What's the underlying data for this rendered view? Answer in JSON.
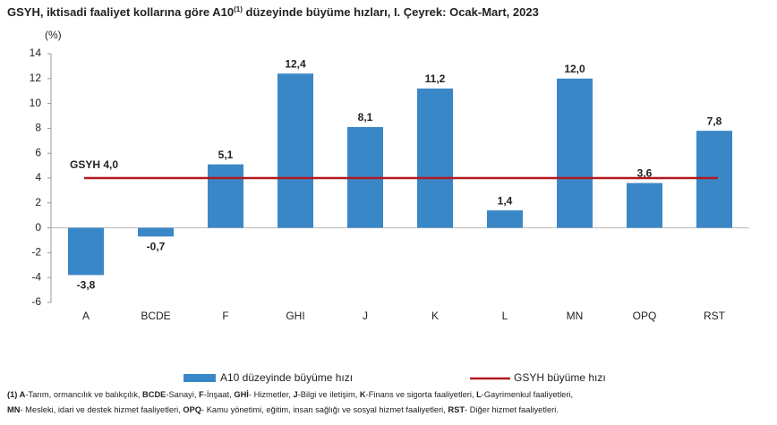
{
  "chart_data": {
    "type": "bar",
    "title": [
      "GSYH, iktisadi faaliyet kollarına göre A10",
      "(1)",
      " düzeyinde büyüme hızları, I. Çeyrek: Ocak-Mart, 2023"
    ],
    "y_label": "(%)",
    "categories": [
      "A",
      "BCDE",
      "F",
      "GHI",
      "J",
      "K",
      "L",
      "MN",
      "OPQ",
      "RST"
    ],
    "series": [
      {
        "name": "A10 düzeyinde büyüme hızı",
        "color": "#3a87c8",
        "values": [
          -3.8,
          -0.7,
          5.1,
          12.4,
          8.1,
          11.2,
          1.4,
          12.0,
          3.6,
          7.8
        ],
        "value_labels": [
          "-3,8",
          "-0,7",
          "5,1",
          "12,4",
          "8,1",
          "11,2",
          "1,4",
          "12,0",
          "3,6",
          "7,8"
        ]
      }
    ],
    "reference_line": {
      "name": "GSYH büyüme hızı",
      "value": 4.0,
      "label": "GSYH 4,0",
      "color": "#b0191e"
    },
    "ylim": [
      -6,
      14
    ],
    "yticks": [
      -6,
      -4,
      -2,
      0,
      2,
      4,
      6,
      8,
      10,
      12,
      14
    ],
    "grid": false,
    "legend": "bottom",
    "footnote": [
      [
        "(1) A",
        "-Tarım, ormancılık ve balıkçılık, ",
        "BCDE",
        "-Sanayi, ",
        "F",
        "-İnşaat, ",
        "GHİ",
        "- Hizmetler, ",
        "J",
        "-Bilgi ve iletişim, ",
        "K",
        "-Finans ve sigorta faaliyetleri, ",
        "L",
        "-Gayrimenkul faaliyetleri,"
      ],
      [
        "MN",
        "- Mesleki, idari ve destek hizmet faaliyetleri, ",
        "OPQ",
        "- Kamu yönetimi, eğitim, insan sağlığı ve sosyal hizmet faaliyetleri, ",
        "RST",
        "- Diğer hizmet faaliyetleri."
      ]
    ]
  }
}
